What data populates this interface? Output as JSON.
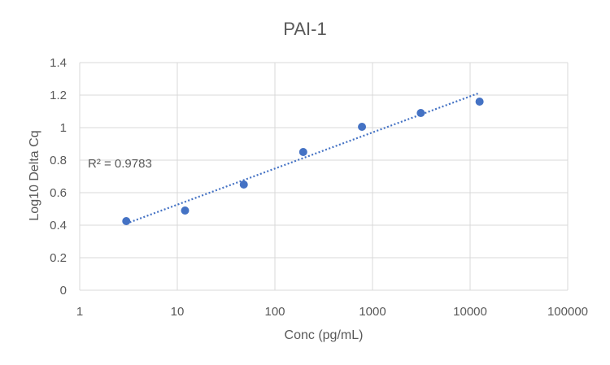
{
  "chart_data": {
    "type": "scatter",
    "title": "PAI-1",
    "xlabel": "Conc (pg/mL)",
    "ylabel": "Log10 Delta Cq",
    "x_scale": "log",
    "xlim": [
      1,
      100000
    ],
    "ylim": [
      0,
      1.4
    ],
    "x_ticks": [
      "1",
      "10",
      "100",
      "1000",
      "10000",
      "100000"
    ],
    "y_ticks": [
      "0",
      "0.2",
      "0.4",
      "0.6",
      "0.8",
      "1",
      "1.2",
      "1.4"
    ],
    "grid": true,
    "points": [
      {
        "x": 3,
        "y": 0.425
      },
      {
        "x": 12,
        "y": 0.49
      },
      {
        "x": 48,
        "y": 0.65
      },
      {
        "x": 195,
        "y": 0.85
      },
      {
        "x": 780,
        "y": 1.005
      },
      {
        "x": 3125,
        "y": 1.09
      },
      {
        "x": 12500,
        "y": 1.16
      }
    ],
    "trendline": {
      "type": "log",
      "style": "dotted",
      "from": {
        "x": 3,
        "y": 0.41
      },
      "to": {
        "x": 12000,
        "y": 1.21
      }
    },
    "annotation": "R² = 0.9783",
    "colors": {
      "points": "#4472c4",
      "trendline": "#4472c4",
      "grid": "#d9d9d9"
    }
  }
}
